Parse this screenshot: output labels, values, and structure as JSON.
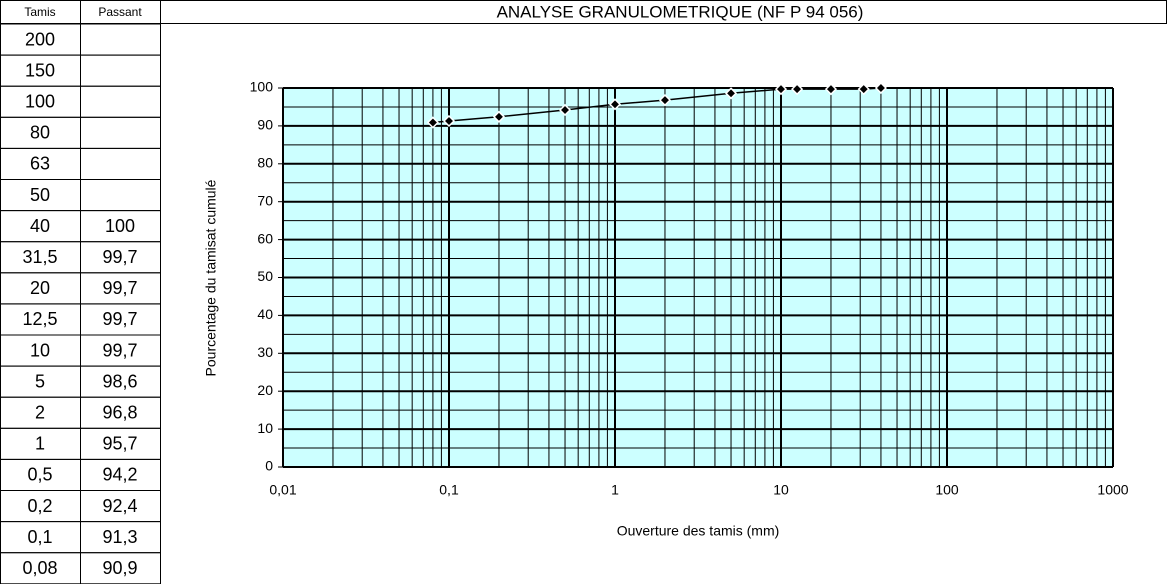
{
  "table": {
    "header": [
      "Tamis",
      "Passant"
    ],
    "rows": [
      [
        "200",
        null
      ],
      [
        "150",
        null
      ],
      [
        "100",
        null
      ],
      [
        "80",
        null
      ],
      [
        "63",
        null
      ],
      [
        "50",
        null
      ],
      [
        "40",
        "100"
      ],
      [
        "31,5",
        "99,7"
      ],
      [
        "20",
        "99,7"
      ],
      [
        "12,5",
        "99,7"
      ],
      [
        "10",
        "99,7"
      ],
      [
        "5",
        "98,6"
      ],
      [
        "2",
        "96,8"
      ],
      [
        "1",
        "95,7"
      ],
      [
        "0,5",
        "94,2"
      ],
      [
        "0,2",
        "92,4"
      ],
      [
        "0,1",
        "91,3"
      ],
      [
        "0,08",
        "90,9"
      ]
    ]
  },
  "chart_data": {
    "type": "line",
    "title": "ANALYSE GRANULOMETRIQUE (NF P 94 056)",
    "x_label": "Ouverture des tamis (mm)",
    "y_label": "Pourcentage du tamisat cumulé",
    "x": [
      0.08,
      0.1,
      0.2,
      0.5,
      1,
      2,
      5,
      10,
      12.5,
      20,
      31.5,
      40
    ],
    "series": [
      {
        "name": "Passant",
        "color": "#000000",
        "values": [
          90.9,
          91.3,
          92.4,
          94.2,
          95.7,
          96.8,
          98.6,
          99.7,
          99.7,
          99.7,
          99.7,
          100
        ]
      }
    ],
    "xlim": [
      0.01,
      1000
    ],
    "ylim": [
      0,
      100
    ],
    "xticks": [
      {
        "value": 0.01,
        "label": "0,01"
      },
      {
        "value": 0.1,
        "label": "0,1"
      },
      1,
      10,
      100,
      1000
    ],
    "yticks": [
      0,
      10,
      20,
      30,
      40,
      50,
      60,
      70,
      80,
      90,
      100
    ],
    "xscale": "log",
    "grid": true,
    "background": "#ccffff"
  }
}
